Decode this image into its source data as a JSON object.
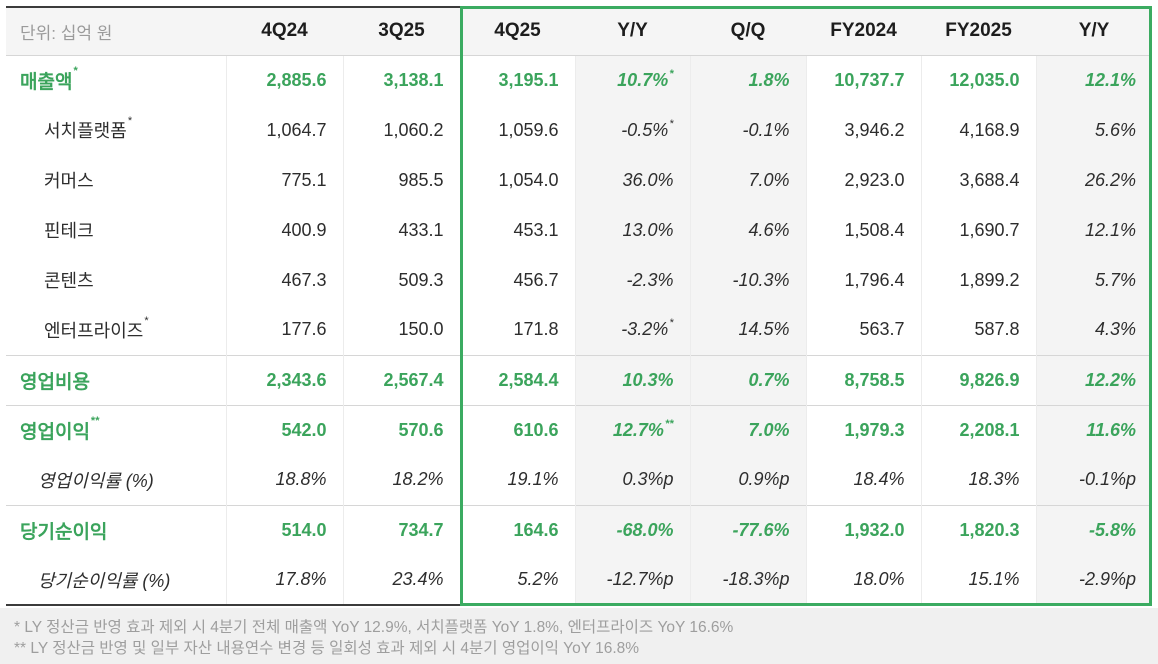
{
  "unit_label": "단위: 십억 원",
  "colors": {
    "accent_green_text": "#3ba45c",
    "highlight_border_green": "#3bab61",
    "gray_column_bg": "#f4f4f4",
    "header_bg": "#f5f5f5",
    "dark_rule": "#3b3b3b"
  },
  "table": {
    "columns": [
      {
        "label": "단위: 십억 원"
      },
      {
        "label": "4Q24"
      },
      {
        "label": "3Q25"
      },
      {
        "label": "4Q25"
      },
      {
        "label": "Y/Y"
      },
      {
        "label": "Q/Q"
      },
      {
        "label": "FY2024"
      },
      {
        "label": "FY2025"
      },
      {
        "label": "Y/Y"
      }
    ],
    "highlighted_columns": [
      "4Q25",
      "Y/Y",
      "Q/Q",
      "FY2024",
      "FY2025",
      "Y/Y"
    ],
    "rows": [
      {
        "type": "main",
        "sep": false,
        "label": "매출액",
        "label_sup": "*",
        "values": [
          "2,885.6",
          "3,138.1",
          "3,195.1",
          "10.7%",
          "1.8%",
          "10,737.7",
          "12,035.0",
          "12.1%"
        ],
        "value_sups": {
          "3": "*"
        }
      },
      {
        "type": "sub",
        "sep": false,
        "label": "서치플랫폼",
        "label_sup": "*",
        "values": [
          "1,064.7",
          "1,060.2",
          "1,059.6",
          "-0.5%",
          "-0.1%",
          "3,946.2",
          "4,168.9",
          "5.6%"
        ],
        "value_sups": {
          "3": "*"
        }
      },
      {
        "type": "sub",
        "sep": false,
        "label": "커머스",
        "values": [
          "775.1",
          "985.5",
          "1,054.0",
          "36.0%",
          "7.0%",
          "2,923.0",
          "3,688.4",
          "26.2%"
        ]
      },
      {
        "type": "sub",
        "sep": false,
        "label": "핀테크",
        "values": [
          "400.9",
          "433.1",
          "453.1",
          "13.0%",
          "4.6%",
          "1,508.4",
          "1,690.7",
          "12.1%"
        ]
      },
      {
        "type": "sub",
        "sep": false,
        "label": "콘텐츠",
        "values": [
          "467.3",
          "509.3",
          "456.7",
          "-2.3%",
          "-10.3%",
          "1,796.4",
          "1,899.2",
          "5.7%"
        ]
      },
      {
        "type": "sub",
        "sep": false,
        "label": "엔터프라이즈",
        "label_sup": "*",
        "values": [
          "177.6",
          "150.0",
          "171.8",
          "-3.2%",
          "14.5%",
          "563.7",
          "587.8",
          "4.3%"
        ],
        "value_sups": {
          "3": "*"
        }
      },
      {
        "type": "main",
        "sep": true,
        "label": "영업비용",
        "values": [
          "2,343.6",
          "2,567.4",
          "2,584.4",
          "10.3%",
          "0.7%",
          "8,758.5",
          "9,826.9",
          "12.2%"
        ]
      },
      {
        "type": "main",
        "sep": true,
        "label": "영업이익",
        "label_sup": "**",
        "values": [
          "542.0",
          "570.6",
          "610.6",
          "12.7%",
          "7.0%",
          "1,979.3",
          "2,208.1",
          "11.6%"
        ],
        "value_sups": {
          "3": "**"
        }
      },
      {
        "type": "ratio",
        "sep": false,
        "label": "영업이익률 (%)",
        "values": [
          "18.8%",
          "18.2%",
          "19.1%",
          "0.3%p",
          "0.9%p",
          "18.4%",
          "18.3%",
          "-0.1%p"
        ]
      },
      {
        "type": "main",
        "sep": true,
        "label": "당기순이익",
        "values": [
          "514.0",
          "734.7",
          "164.6",
          "-68.0%",
          "-77.6%",
          "1,932.0",
          "1,820.3",
          "-5.8%"
        ]
      },
      {
        "type": "ratio",
        "sep": false,
        "label": "당기순이익률 (%)",
        "values": [
          "17.8%",
          "23.4%",
          "5.2%",
          "-12.7%p",
          "-18.3%p",
          "18.0%",
          "15.1%",
          "-2.9%p"
        ]
      }
    ]
  },
  "footnotes": [
    "* LY 정산금 반영 효과 제외 시 4분기 전체 매출액 YoY 12.9%, 서치플랫폼 YoY 1.8%, 엔터프라이즈 YoY 16.6%",
    "** LY 정산금 반영 및 일부 자산 내용연수 변경 등 일회성 효과 제외 시 4분기 영업이익 YoY 16.8%"
  ]
}
